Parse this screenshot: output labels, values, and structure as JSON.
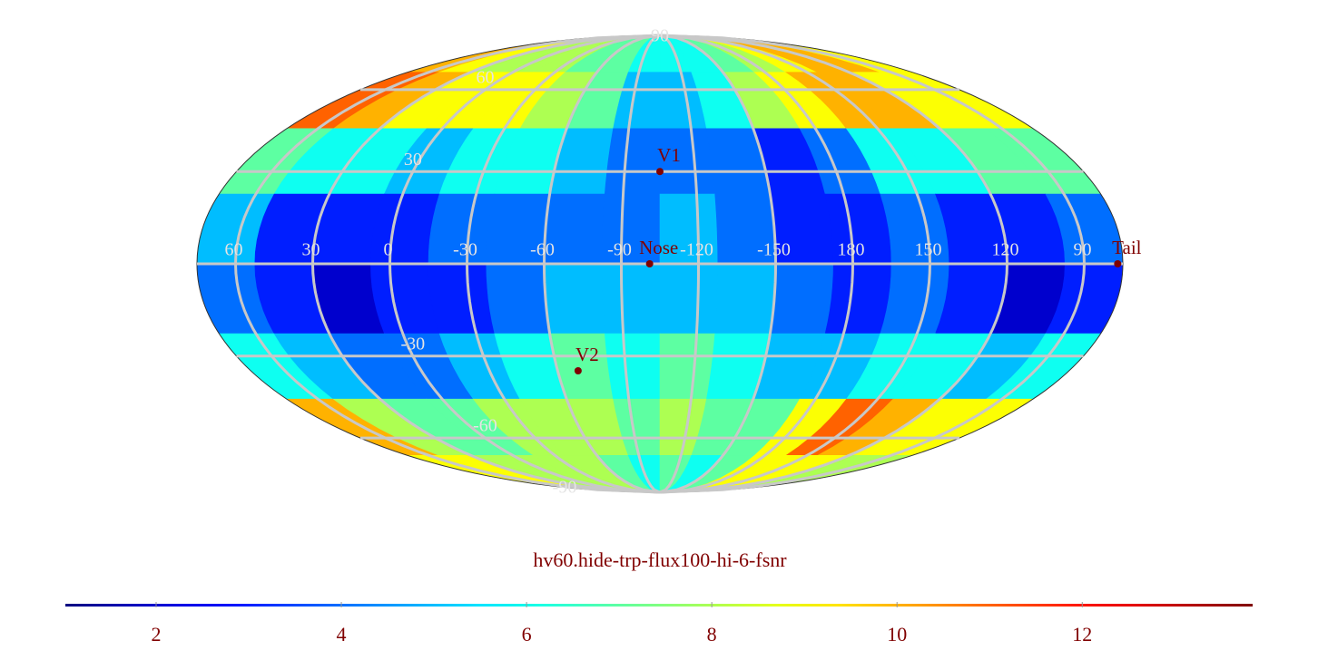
{
  "chart_data": {
    "type": "mollweide-heatmap",
    "title": "hv60.hide-trp-flux100-hi-6-fsnr",
    "colormap": "jet",
    "center_lon": -105,
    "lat_bins": [
      90,
      67.5,
      45,
      22.5,
      0,
      -22.5,
      -45,
      -67.5,
      -90
    ],
    "lon_bins": [
      75,
      52.5,
      30,
      7.5,
      -15,
      -37.5,
      -60,
      -82.5,
      -105,
      -127.5,
      -150,
      -172.5,
      -195,
      -217.5,
      -240,
      -262.5,
      -285
    ],
    "values": [
      [
        10,
        9,
        8,
        8,
        8,
        7,
        7,
        6,
        6,
        6,
        7,
        8,
        9,
        10,
        10,
        9
      ],
      [
        11,
        10,
        9,
        9,
        9,
        8,
        7,
        5,
        5,
        6,
        8,
        9,
        10,
        10,
        9,
        9
      ],
      [
        7,
        6,
        6,
        5,
        6,
        6,
        5,
        4,
        4,
        4,
        3,
        4,
        6,
        6,
        7,
        7
      ],
      [
        5,
        3,
        3,
        3,
        4,
        4,
        4,
        4,
        5,
        4,
        3,
        3,
        4,
        3,
        3,
        4
      ],
      [
        4,
        3,
        2,
        3,
        3,
        4,
        5,
        5,
        5,
        5,
        4,
        3,
        4,
        3,
        2,
        3
      ],
      [
        6,
        5,
        4,
        4,
        5,
        6,
        7,
        6,
        7,
        6,
        5,
        5,
        6,
        6,
        5,
        6
      ],
      [
        10,
        8,
        7,
        7,
        8,
        8,
        8,
        7,
        8,
        7,
        7,
        9,
        11,
        10,
        9,
        9
      ],
      [
        9,
        9,
        8,
        8,
        8,
        8,
        7,
        6,
        7,
        6,
        7,
        9,
        9,
        9,
        8,
        8
      ]
    ],
    "lon_ticks": [
      60,
      30,
      0,
      -30,
      -60,
      -90,
      -120,
      -150,
      180,
      150,
      120,
      90
    ],
    "lat_ticks": [
      90,
      60,
      30,
      -30,
      -60,
      -90
    ],
    "markers": [
      {
        "label": "V1",
        "lon": -105,
        "lat": 30
      },
      {
        "label": "Nose",
        "lon": -101,
        "lat": 0
      },
      {
        "label": "V2",
        "lon": -69,
        "lat": -35
      },
      {
        "label": "Tail",
        "lon": 77,
        "lat": 0
      }
    ],
    "clim": [
      1.02,
      13.84
    ],
    "colorbar_ticks": [
      2,
      4,
      6,
      8,
      10,
      12
    ],
    "grid": true,
    "grid_color": "#c8c8c8",
    "label_color": "#800000"
  }
}
